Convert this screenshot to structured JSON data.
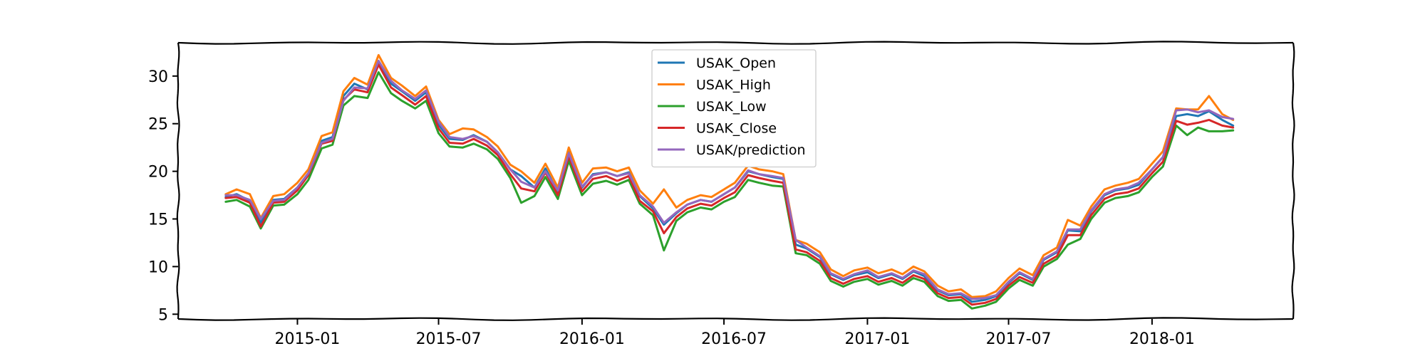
{
  "chart_data": {
    "type": "line",
    "title": "",
    "xlabel": "",
    "ylabel": "",
    "x_ticks": [
      "2015-01",
      "2015-07",
      "2016-01",
      "2016-07",
      "2017-01",
      "2017-07",
      "2018-01"
    ],
    "y_ticks": [
      5,
      10,
      15,
      20,
      25,
      30
    ],
    "xlim": [
      "2014-08-01",
      "2018-07-01"
    ],
    "ylim": [
      4.5,
      33.5
    ],
    "legend_position": "upper-center",
    "grid": false,
    "x": [
      "2014-10-01",
      "2014-10-15",
      "2014-11-01",
      "2014-11-15",
      "2014-12-01",
      "2014-12-15",
      "2015-01-01",
      "2015-01-15",
      "2015-02-01",
      "2015-02-15",
      "2015-03-01",
      "2015-03-15",
      "2015-04-01",
      "2015-04-15",
      "2015-05-01",
      "2015-05-15",
      "2015-06-01",
      "2015-06-15",
      "2015-07-01",
      "2015-07-15",
      "2015-08-01",
      "2015-08-15",
      "2015-09-01",
      "2015-09-15",
      "2015-10-01",
      "2015-10-15",
      "2015-11-01",
      "2015-11-15",
      "2015-12-01",
      "2015-12-15",
      "2016-01-01",
      "2016-01-15",
      "2016-02-01",
      "2016-02-15",
      "2016-03-01",
      "2016-03-15",
      "2016-04-01",
      "2016-04-15",
      "2016-05-01",
      "2016-05-15",
      "2016-06-01",
      "2016-06-15",
      "2016-07-01",
      "2016-07-15",
      "2016-08-01",
      "2016-08-15",
      "2016-09-01",
      "2016-09-15",
      "2016-10-01",
      "2016-10-15",
      "2016-11-01",
      "2016-11-15",
      "2016-12-01",
      "2016-12-15",
      "2017-01-01",
      "2017-01-15",
      "2017-02-01",
      "2017-02-15",
      "2017-03-01",
      "2017-03-15",
      "2017-04-01",
      "2017-04-15",
      "2017-05-01",
      "2017-05-15",
      "2017-06-01",
      "2017-06-15",
      "2017-07-01",
      "2017-07-15",
      "2017-08-01",
      "2017-08-15",
      "2017-09-01",
      "2017-09-15",
      "2017-10-01",
      "2017-10-15",
      "2017-11-01",
      "2017-11-15",
      "2017-12-01",
      "2017-12-15",
      "2018-01-01",
      "2018-01-15",
      "2018-02-01",
      "2018-02-15",
      "2018-03-01",
      "2018-03-15",
      "2018-04-01",
      "2018-04-15"
    ],
    "series": [
      {
        "name": "USAK_Open",
        "color": "#1f77b4",
        "values": [
          17.3,
          17.6,
          16.9,
          14.6,
          17.0,
          17.1,
          18.3,
          19.8,
          23.2,
          23.6,
          27.9,
          29.2,
          28.6,
          31.5,
          29.2,
          28.4,
          27.4,
          28.3,
          24.9,
          23.4,
          23.3,
          23.8,
          23.1,
          22.0,
          20.2,
          19.5,
          18.3,
          20.3,
          17.8,
          22.0,
          18.3,
          19.7,
          19.9,
          19.5,
          19.9,
          17.4,
          16.1,
          14.4,
          15.6,
          16.5,
          17.0,
          16.8,
          17.6,
          18.3,
          20.0,
          19.7,
          19.4,
          19.2,
          12.3,
          11.9,
          11.0,
          9.2,
          8.6,
          9.1,
          9.4,
          8.8,
          9.2,
          8.7,
          9.5,
          9.0,
          7.5,
          7.0,
          7.1,
          6.3,
          6.5,
          6.9,
          8.3,
          9.3,
          8.6,
          10.7,
          11.5,
          13.8,
          13.7,
          15.8,
          17.5,
          18.0,
          18.2,
          18.6,
          20.2,
          21.5,
          25.8,
          26.0,
          25.8,
          26.3,
          25.4,
          24.8
        ]
      },
      {
        "name": "USAK_High",
        "color": "#ff7f0e",
        "values": [
          17.6,
          18.1,
          17.6,
          15.1,
          17.4,
          17.6,
          18.8,
          20.2,
          23.7,
          24.1,
          28.4,
          29.8,
          29.1,
          32.2,
          29.8,
          29.0,
          27.9,
          28.9,
          25.4,
          23.9,
          24.5,
          24.4,
          23.6,
          22.6,
          20.7,
          20.0,
          18.8,
          20.8,
          18.3,
          22.5,
          18.8,
          20.3,
          20.4,
          20.0,
          20.4,
          18.0,
          16.6,
          18.1,
          16.2,
          17.0,
          17.5,
          17.3,
          18.1,
          18.8,
          20.6,
          20.2,
          20.0,
          19.7,
          12.8,
          12.4,
          11.5,
          9.7,
          9.0,
          9.6,
          9.9,
          9.3,
          9.7,
          9.2,
          10.0,
          9.5,
          8.0,
          7.4,
          7.6,
          6.8,
          6.9,
          7.4,
          8.8,
          9.8,
          9.1,
          11.2,
          12.0,
          14.9,
          14.3,
          16.3,
          18.1,
          18.5,
          18.8,
          19.2,
          20.8,
          22.1,
          26.6,
          26.5,
          26.5,
          27.9,
          26.0,
          25.4
        ]
      },
      {
        "name": "USAK_Low",
        "color": "#2ca02c",
        "values": [
          16.8,
          17.0,
          16.3,
          14.0,
          16.4,
          16.5,
          17.6,
          19.1,
          22.4,
          22.8,
          26.9,
          27.9,
          27.7,
          30.4,
          28.2,
          27.4,
          26.6,
          27.4,
          24.0,
          22.6,
          22.5,
          22.9,
          22.3,
          21.3,
          19.3,
          16.7,
          17.4,
          19.4,
          17.1,
          21.1,
          17.5,
          18.7,
          19.0,
          18.6,
          19.1,
          16.6,
          15.4,
          11.7,
          14.8,
          15.7,
          16.2,
          16.0,
          16.8,
          17.3,
          19.1,
          18.8,
          18.5,
          18.4,
          11.4,
          11.2,
          10.3,
          8.5,
          7.9,
          8.4,
          8.7,
          8.1,
          8.5,
          8.0,
          8.8,
          8.4,
          6.9,
          6.4,
          6.5,
          5.6,
          5.9,
          6.3,
          7.7,
          8.6,
          8.0,
          10.0,
          10.8,
          12.3,
          12.9,
          15.0,
          16.7,
          17.2,
          17.4,
          17.8,
          19.4,
          20.5,
          24.8,
          23.8,
          24.6,
          24.2,
          24.2,
          24.3
        ]
      },
      {
        "name": "USAK_Close",
        "color": "#d62728",
        "values": [
          17.2,
          17.3,
          16.7,
          14.2,
          16.7,
          16.8,
          18.0,
          19.6,
          22.9,
          23.2,
          27.5,
          28.6,
          28.3,
          31.2,
          28.8,
          28.0,
          27.0,
          27.9,
          24.5,
          23.0,
          22.9,
          23.4,
          22.7,
          21.7,
          19.7,
          18.2,
          17.9,
          19.9,
          17.5,
          21.6,
          17.9,
          19.2,
          19.5,
          19.0,
          19.5,
          16.9,
          15.8,
          13.5,
          15.2,
          16.1,
          16.6,
          16.4,
          17.2,
          17.8,
          19.6,
          19.3,
          19.0,
          18.8,
          11.8,
          11.5,
          10.6,
          8.8,
          8.2,
          8.7,
          9.0,
          8.4,
          8.8,
          8.3,
          9.1,
          8.7,
          7.2,
          6.7,
          6.8,
          6.0,
          6.2,
          6.6,
          8.0,
          8.9,
          8.3,
          10.3,
          11.1,
          13.3,
          13.3,
          15.4,
          17.1,
          17.6,
          17.8,
          18.2,
          19.8,
          21.0,
          25.3,
          24.9,
          25.1,
          25.4,
          24.8,
          24.6
        ]
      },
      {
        "name": "USAK/prediction",
        "color": "#9467bd",
        "values": [
          17.5,
          17.5,
          17.0,
          15.0,
          16.9,
          17.0,
          18.3,
          19.8,
          23.0,
          23.4,
          27.4,
          28.8,
          28.7,
          31.6,
          29.5,
          28.5,
          27.6,
          28.5,
          25.2,
          23.6,
          23.4,
          23.7,
          23.1,
          22.0,
          20.2,
          18.9,
          18.3,
          20.0,
          18.0,
          21.9,
          18.4,
          19.6,
          19.9,
          19.5,
          19.8,
          17.5,
          16.3,
          14.6,
          15.7,
          16.5,
          17.0,
          16.8,
          17.6,
          18.3,
          20.1,
          19.7,
          19.5,
          19.3,
          12.8,
          12.0,
          11.1,
          9.3,
          8.7,
          9.2,
          9.6,
          8.9,
          9.3,
          8.8,
          9.6,
          9.2,
          7.6,
          7.1,
          7.2,
          6.6,
          6.7,
          7.0,
          8.4,
          9.4,
          8.7,
          10.8,
          11.6,
          13.9,
          13.9,
          15.9,
          17.6,
          18.1,
          18.3,
          18.8,
          20.2,
          21.5,
          26.4,
          26.5,
          26.2,
          26.4,
          25.7,
          25.5
        ]
      }
    ]
  }
}
